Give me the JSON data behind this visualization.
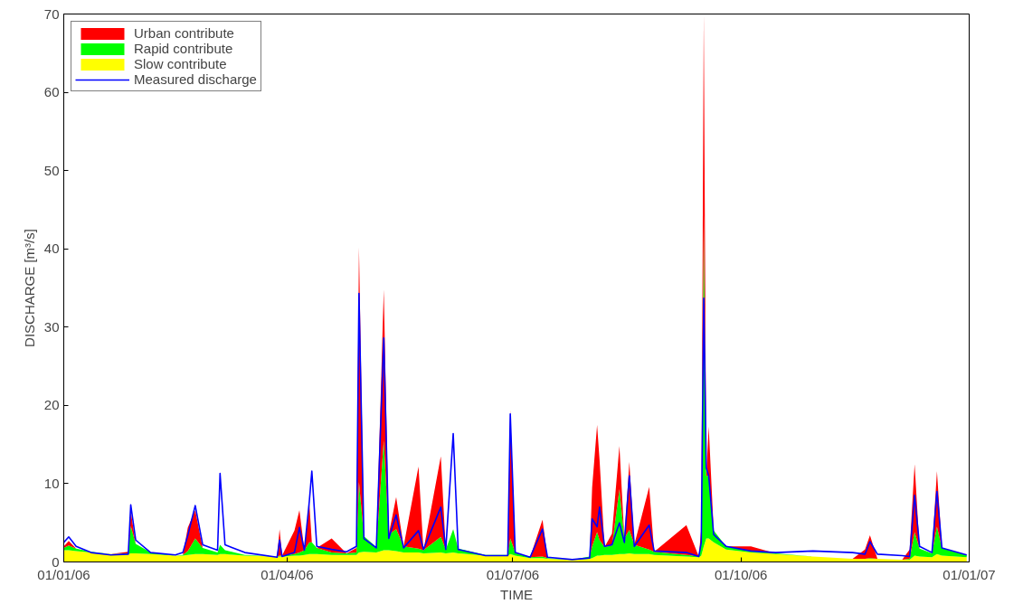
{
  "chart_data": {
    "type": "area",
    "stacked": true,
    "xlabel": "TIME",
    "ylabel": "DISCHARGE [m³/s]",
    "x": [
      "2006-01-01",
      "2006-01-03",
      "2006-01-06",
      "2006-01-12",
      "2006-01-20",
      "2006-01-27",
      "2006-01-28",
      "2006-01-30",
      "2006-02-05",
      "2006-02-15",
      "2006-02-18",
      "2006-02-20",
      "2006-02-23",
      "2006-02-26",
      "2006-03-04",
      "2006-03-05",
      "2006-03-07",
      "2006-03-15",
      "2006-03-28",
      "2006-03-29",
      "2006-03-30",
      "2006-04-04",
      "2006-04-06",
      "2006-04-08",
      "2006-04-10",
      "2006-04-11",
      "2006-04-13",
      "2006-04-19",
      "2006-04-25",
      "2006-04-29",
      "2006-04-30",
      "2006-05-02",
      "2006-05-07",
      "2006-05-10",
      "2006-05-12",
      "2006-05-15",
      "2006-05-18",
      "2006-05-24",
      "2006-05-26",
      "2006-06-02",
      "2006-06-04",
      "2006-06-07",
      "2006-06-09",
      "2006-06-20",
      "2006-06-29",
      "2006-06-30",
      "2006-07-02",
      "2006-07-08",
      "2006-07-13",
      "2006-07-15",
      "2006-07-25",
      "2006-08-01",
      "2006-08-02",
      "2006-08-04",
      "2006-08-05",
      "2006-08-07",
      "2006-08-10",
      "2006-08-13",
      "2006-08-15",
      "2006-08-17",
      "2006-08-19",
      "2006-08-25",
      "2006-08-27",
      "2006-09-09",
      "2006-09-14",
      "2006-09-15",
      "2006-09-16",
      "2006-09-17",
      "2006-09-18",
      "2006-09-20",
      "2006-09-25",
      "2006-10-05",
      "2006-10-15",
      "2006-10-30",
      "2006-11-15",
      "2006-11-20",
      "2006-11-22",
      "2006-11-25",
      "2006-12-05",
      "2006-12-08",
      "2006-12-10",
      "2006-12-12",
      "2006-12-17",
      "2006-12-19",
      "2006-12-21",
      "2006-12-31"
    ],
    "series": [
      {
        "name": "Slow contribute",
        "color": "#ffff00",
        "values": [
          1.5,
          1.5,
          1.4,
          1.2,
          1.0,
          1.0,
          1.1,
          1.1,
          1.0,
          0.8,
          0.8,
          0.9,
          1.0,
          1.0,
          0.9,
          1.0,
          1.0,
          0.8,
          0.7,
          0.7,
          0.7,
          0.8,
          0.8,
          0.9,
          1.0,
          1.0,
          1.0,
          0.9,
          0.9,
          0.9,
          1.2,
          1.3,
          1.2,
          1.5,
          1.5,
          1.4,
          1.2,
          1.2,
          1.1,
          1.2,
          1.1,
          1.2,
          1.1,
          0.8,
          0.8,
          1.0,
          0.8,
          0.5,
          0.5,
          0.4,
          0.3,
          0.4,
          0.5,
          0.8,
          0.8,
          0.9,
          0.9,
          1.0,
          1.0,
          1.1,
          1.0,
          1.0,
          0.9,
          0.7,
          0.6,
          0.8,
          2.0,
          3.0,
          3.0,
          2.5,
          1.6,
          1.2,
          1.0,
          0.7,
          0.4,
          0.4,
          0.4,
          0.4,
          0.3,
          0.3,
          0.8,
          0.7,
          0.6,
          1.0,
          0.8,
          0.6
        ]
      },
      {
        "name": "Rapid contribute",
        "color": "#00ff00",
        "values": [
          0.3,
          0.6,
          0.3,
          0.1,
          0,
          0.1,
          3.5,
          1.2,
          0.2,
          0,
          0.1,
          0.5,
          2.0,
          0.8,
          0.3,
          1.2,
          0.5,
          0.1,
          0,
          0.1,
          0.1,
          0.2,
          0.4,
          0.6,
          1.5,
          1.5,
          0.8,
          0.3,
          0.2,
          0.3,
          9.0,
          2.0,
          0.7,
          14.0,
          2.0,
          2.8,
          0.8,
          0.5,
          0.4,
          2.0,
          0.5,
          3.0,
          0.6,
          0.1,
          0.1,
          2.0,
          0.4,
          0.1,
          0.2,
          0.1,
          0,
          0.3,
          1.5,
          3.0,
          2.0,
          1.0,
          1.2,
          8.3,
          2.0,
          3.0,
          1.2,
          0.6,
          0.4,
          0.2,
          0.1,
          1.5,
          42.3,
          8.0,
          8.0,
          1.5,
          0.4,
          0.2,
          0.1,
          0,
          0,
          0,
          0.1,
          0,
          0,
          0.1,
          3.0,
          1.0,
          0.5,
          3.5,
          1.0,
          0.3
        ]
      },
      {
        "name": "Urban contribute",
        "color": "#ff0000",
        "values": [
          0.2,
          0.6,
          0,
          0,
          0,
          0.2,
          1.9,
          0,
          0,
          0,
          0,
          3.0,
          3.6,
          0,
          0,
          0,
          0,
          0,
          0,
          3.4,
          0,
          3.0,
          5.4,
          0,
          5.0,
          0,
          0,
          1.8,
          0,
          0.6,
          30.0,
          0,
          0,
          19.3,
          0,
          4.1,
          0,
          10.5,
          0,
          10.3,
          0,
          0,
          0,
          0,
          0,
          16.4,
          0,
          0,
          4.7,
          0,
          0,
          0,
          7.5,
          13.7,
          10.2,
          0,
          1.5,
          5.5,
          0,
          8.7,
          0,
          8.0,
          0,
          3.8,
          0,
          2.0,
          25.7,
          0,
          6.3,
          0,
          0,
          0.6,
          0,
          0,
          0,
          1.2,
          2.9,
          0,
          0,
          1.2,
          8.7,
          0,
          0,
          7.1,
          0,
          0
        ]
      },
      {
        "name": "Measured discharge",
        "type": "line",
        "color": "#0000ff",
        "values": [
          2.5,
          3.2,
          2.0,
          1.2,
          0.9,
          1.0,
          7.3,
          2.8,
          1.2,
          0.9,
          1.2,
          3.4,
          7.2,
          2.2,
          1.5,
          11.3,
          2.2,
          1.2,
          0.6,
          2.8,
          0.7,
          1.2,
          4.4,
          1.5,
          7.8,
          11.6,
          2.0,
          1.6,
          1.3,
          2.0,
          34.3,
          3.0,
          1.8,
          28.6,
          3.0,
          6.0,
          1.8,
          4.0,
          1.6,
          7.0,
          1.6,
          16.4,
          1.6,
          0.8,
          0.8,
          18.9,
          1.2,
          0.6,
          4.2,
          0.6,
          0.3,
          0.5,
          5.5,
          4.5,
          7.0,
          2.0,
          2.2,
          5.0,
          2.5,
          11.0,
          2.0,
          4.7,
          1.4,
          1.2,
          0.7,
          2.5,
          33.7,
          12.0,
          11.0,
          3.5,
          2.0,
          1.4,
          1.2,
          1.4,
          1.2,
          1.0,
          2.6,
          1.0,
          0.8,
          0.7,
          8.5,
          2.0,
          1.2,
          9.0,
          1.8,
          0.9
        ]
      }
    ],
    "xlim": [
      "2006-01-01",
      "2007-01-01"
    ],
    "xticks": [
      {
        "value": "2006-01-01",
        "label": "01/01/06"
      },
      {
        "value": "2006-04-01",
        "label": "01/04/06"
      },
      {
        "value": "2006-07-01",
        "label": "01/07/06"
      },
      {
        "value": "2006-10-01",
        "label": "01/10/06"
      },
      {
        "value": "2007-01-01",
        "label": "01/01/07"
      }
    ],
    "ylim": [
      0,
      70
    ],
    "yticks": [
      0,
      10,
      20,
      30,
      40,
      50,
      60,
      70
    ],
    "grid": false,
    "legend": "top left"
  }
}
